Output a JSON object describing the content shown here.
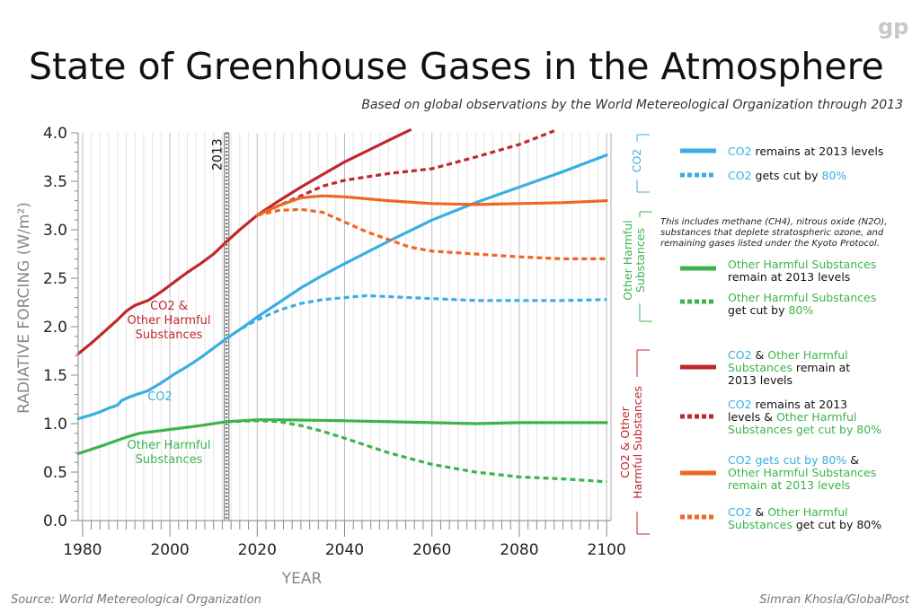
{
  "header": {
    "logo": "gp",
    "title": "State of Greenhouse Gases in the Atmosphere",
    "subtitle": "Based on global observations by the World Metereological Organization through 2013"
  },
  "footer": {
    "source": "Source: World Metereological Organization",
    "credit": "Simran Khosla/GlobalPost"
  },
  "colors": {
    "co2": "#3aaee3",
    "other": "#3cb44b",
    "both": "#c0272d",
    "mixed": "#f26522",
    "marker": "#666666"
  },
  "chart_data": {
    "type": "line",
    "xlabel": "YEAR",
    "ylabel": "RADIATIVE FORCING (W/m²)",
    "xlim": [
      1979,
      2101
    ],
    "ylim": [
      0,
      4.0
    ],
    "xticks": [
      1980,
      2000,
      2020,
      2040,
      2060,
      2080,
      2100
    ],
    "yticks": [
      "0.0",
      "0.5",
      "1.0",
      "1.5",
      "2.0",
      "2.5",
      "3.0",
      "3.5",
      "4.0"
    ],
    "marker": {
      "year": 2013,
      "label": "2013"
    },
    "inline_labels": [
      {
        "key": "both",
        "lines": [
          "CO2 &",
          "Other Harmful",
          "Substances"
        ]
      },
      {
        "key": "co2",
        "lines": [
          "CO2"
        ]
      },
      {
        "key": "other",
        "lines": [
          "Other Harmful",
          "Substances"
        ]
      }
    ],
    "series": [
      {
        "key": "co2_hold",
        "color": "co2",
        "dashed": false,
        "x": [
          1979,
          1982,
          1984,
          1986,
          1988,
          1989,
          1991,
          1993,
          1995,
          1998,
          2001,
          2004,
          2007,
          2010,
          2013,
          2016,
          2020,
          2025,
          2030,
          2035,
          2040,
          2050,
          2060,
          2070,
          2080,
          2090,
          2100
        ],
        "y": [
          1.05,
          1.09,
          1.12,
          1.16,
          1.19,
          1.24,
          1.28,
          1.31,
          1.34,
          1.42,
          1.51,
          1.59,
          1.68,
          1.78,
          1.88,
          1.97,
          2.1,
          2.25,
          2.4,
          2.53,
          2.65,
          2.88,
          3.1,
          3.28,
          3.44,
          3.6,
          3.77
        ]
      },
      {
        "key": "co2_cut",
        "color": "co2",
        "dashed": true,
        "x": [
          2013,
          2016,
          2020,
          2025,
          2030,
          2035,
          2040,
          2045,
          2050,
          2060,
          2070,
          2080,
          2090,
          2100
        ],
        "y": [
          1.88,
          1.97,
          2.07,
          2.17,
          2.24,
          2.28,
          2.3,
          2.32,
          2.31,
          2.29,
          2.27,
          2.27,
          2.27,
          2.28
        ]
      },
      {
        "key": "other_hold",
        "color": "other",
        "dashed": false,
        "x": [
          1979,
          1985,
          1990,
          1993,
          2000,
          2007,
          2013,
          2020,
          2025,
          2040,
          2060,
          2070,
          2080,
          2100
        ],
        "y": [
          0.69,
          0.78,
          0.86,
          0.9,
          0.94,
          0.98,
          1.02,
          1.04,
          1.04,
          1.03,
          1.01,
          1.0,
          1.01,
          1.01
        ]
      },
      {
        "key": "other_cut",
        "color": "other",
        "dashed": true,
        "x": [
          2013,
          2020,
          2025,
          2030,
          2035,
          2040,
          2050,
          2060,
          2070,
          2080,
          2090,
          2100
        ],
        "y": [
          1.02,
          1.03,
          1.02,
          0.98,
          0.92,
          0.85,
          0.7,
          0.58,
          0.5,
          0.45,
          0.43,
          0.4
        ]
      },
      {
        "key": "both_hold",
        "color": "both",
        "dashed": false,
        "x": [
          1979,
          1982,
          1985,
          1988,
          1990,
          1992,
          1995,
          1998,
          2001,
          2004,
          2007,
          2010,
          2013,
          2016,
          2020,
          2025,
          2030,
          2035,
          2040,
          2045,
          2050,
          2055
        ],
        "y": [
          1.72,
          1.83,
          1.95,
          2.07,
          2.16,
          2.22,
          2.27,
          2.36,
          2.46,
          2.56,
          2.65,
          2.75,
          2.88,
          3.0,
          3.15,
          3.3,
          3.44,
          3.57,
          3.7,
          3.81,
          3.92,
          4.03
        ]
      },
      {
        "key": "both_cut",
        "color": "both",
        "dashed": true,
        "x": [
          2020,
          2025,
          2030,
          2035,
          2040,
          2050,
          2060,
          2070,
          2080,
          2088
        ],
        "y": [
          3.15,
          3.25,
          3.35,
          3.45,
          3.51,
          3.58,
          3.63,
          3.75,
          3.88,
          4.02
        ]
      },
      {
        "key": "mixed_hold",
        "color": "mixed",
        "dashed": false,
        "x": [
          2020,
          2025,
          2030,
          2035,
          2040,
          2050,
          2060,
          2070,
          2080,
          2090,
          2100
        ],
        "y": [
          3.15,
          3.25,
          3.33,
          3.35,
          3.34,
          3.3,
          3.27,
          3.26,
          3.27,
          3.28,
          3.3
        ]
      },
      {
        "key": "mixed_cut",
        "color": "mixed",
        "dashed": true,
        "x": [
          2020,
          2025,
          2030,
          2035,
          2040,
          2045,
          2050,
          2055,
          2060,
          2070,
          2080,
          2090,
          2100
        ],
        "y": [
          3.15,
          3.2,
          3.21,
          3.18,
          3.08,
          2.98,
          2.9,
          2.82,
          2.78,
          2.75,
          2.72,
          2.7,
          2.7
        ]
      }
    ],
    "legend_groups": [
      {
        "name": "CO2",
        "color": "co2",
        "items": [
          {
            "series": "co2_hold",
            "lines": [
              [
                [
                  "CO2",
                  "co2"
                ],
                [
                  " remains at 2013 levels",
                  "text"
                ]
              ]
            ]
          },
          {
            "series": "co2_cut",
            "lines": [
              [
                [
                  "CO2",
                  "co2"
                ],
                [
                  " gets cut by ",
                  "text"
                ],
                [
                  "80%",
                  "co2"
                ]
              ]
            ]
          }
        ]
      },
      {
        "name": "Other Harmful Substances",
        "name_lines": [
          "Other Harmful",
          "Substances"
        ],
        "color": "other",
        "note": [
          "This includes methane (CH4), nitrous oxide (N2O),",
          "substances that deplete stratospheric ozone, and",
          "remaining gases listed under the Kyoto Protocol."
        ],
        "items": [
          {
            "series": "other_hold",
            "lines": [
              [
                [
                  "Other Harmful Substances",
                  "other"
                ]
              ],
              [
                [
                  "remain at 2013 levels",
                  "text"
                ]
              ]
            ]
          },
          {
            "series": "other_cut",
            "lines": [
              [
                [
                  "Other Harmful Substances",
                  "other"
                ]
              ],
              [
                [
                  "get cut by ",
                  "text"
                ],
                [
                  "80%",
                  "other"
                ]
              ]
            ]
          }
        ]
      },
      {
        "name": "CO2 & Other Harmful Substances",
        "name_lines": [
          "CO2 & Other",
          "Harmful Substances"
        ],
        "color": "both",
        "items": [
          {
            "series": "both_hold",
            "lines": [
              [
                [
                  "CO2",
                  "co2"
                ],
                [
                  " & ",
                  "text"
                ],
                [
                  "Other Harmful",
                  "other"
                ]
              ],
              [
                [
                  "Substances",
                  "other"
                ],
                [
                  " remain at",
                  "text"
                ]
              ],
              [
                [
                  "2013 levels",
                  "text"
                ]
              ]
            ]
          },
          {
            "series": "both_cut",
            "lines": [
              [
                [
                  "CO2",
                  "co2"
                ],
                [
                  " remains at 2013",
                  "text"
                ]
              ],
              [
                [
                  "levels & ",
                  "text"
                ],
                [
                  "Other Harmful",
                  "other"
                ]
              ],
              [
                [
                  "Substances get cut by 80%",
                  "other"
                ]
              ]
            ]
          },
          {
            "series": "mixed_hold",
            "lines": [
              [
                [
                  "CO2 gets cut by 80%",
                  "co2"
                ],
                [
                  " &",
                  "text"
                ]
              ],
              [
                [
                  "Other Harmful Substances",
                  "other"
                ]
              ],
              [
                [
                  "remain at 2013 levels",
                  "other"
                ]
              ]
            ]
          },
          {
            "series": "mixed_cut",
            "lines": [
              [
                [
                  "CO2",
                  "co2"
                ],
                [
                  " & ",
                  "text"
                ],
                [
                  "Other Harmful",
                  "other"
                ]
              ],
              [
                [
                  "Substances",
                  "other"
                ],
                [
                  " get cut by 80%",
                  "text"
                ]
              ]
            ]
          }
        ]
      }
    ]
  }
}
